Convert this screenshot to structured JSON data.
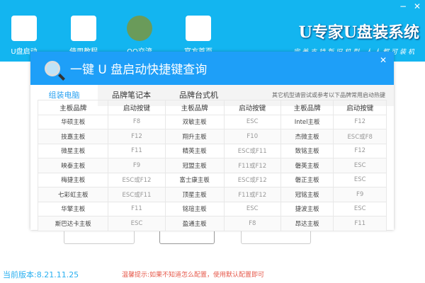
{
  "header": {
    "brand": "U专家U盘装系统",
    "slogan": "完美支持新旧机型 人人都可装机",
    "minimize": "−",
    "close": "✕",
    "nav": [
      {
        "label": "U盘启动",
        "icon": "usb-drive-icon"
      },
      {
        "label": "使用教程",
        "icon": "book-icon"
      },
      {
        "label": "QQ交流",
        "icon": "users-icon"
      },
      {
        "label": "官方首页",
        "icon": "home-icon"
      }
    ]
  },
  "dialog": {
    "title": "一键 U 盘启动快捷键查询",
    "close": "✕",
    "tabs": [
      "组装电脑",
      "品牌笔记本",
      "品牌台式机"
    ],
    "hint": "其它机型请尝试或参考以下品牌常用启动热键",
    "columns": [
      "主板品牌",
      "启动按键",
      "主板品牌",
      "启动按键",
      "主板品牌",
      "启动按键"
    ],
    "rows": [
      [
        "华硕主板",
        "F8",
        "双敏主板",
        "ESC",
        "Intel主板",
        "F12"
      ],
      [
        "技嘉主板",
        "F12",
        "翔升主板",
        "F10",
        "杰微主板",
        "ESC或F8"
      ],
      [
        "微星主板",
        "F11",
        "精英主板",
        "ESC或F11",
        "致铭主板",
        "F12"
      ],
      [
        "映泰主板",
        "F9",
        "冠盟主板",
        "F11或F12",
        "磐英主板",
        "ESC"
      ],
      [
        "梅捷主板",
        "ESC或F12",
        "富士康主板",
        "ESC或F12",
        "磐正主板",
        "ESC"
      ],
      [
        "七彩虹主板",
        "ESC或F11",
        "顶星主板",
        "F11或F12",
        "冠铭主板",
        "F9"
      ],
      [
        "华擎主板",
        "F11",
        "铭瑄主板",
        "ESC",
        "捷波主板",
        "ESC"
      ],
      [
        "斯巴达卡主板",
        "ESC",
        "盈通主板",
        "F8",
        "昂达主板",
        "F11"
      ]
    ]
  },
  "footer": {
    "version": "当前版本:8.21.11.25",
    "tip": "温馨提示:如果不知道怎么配置，使用默认配置即可"
  }
}
